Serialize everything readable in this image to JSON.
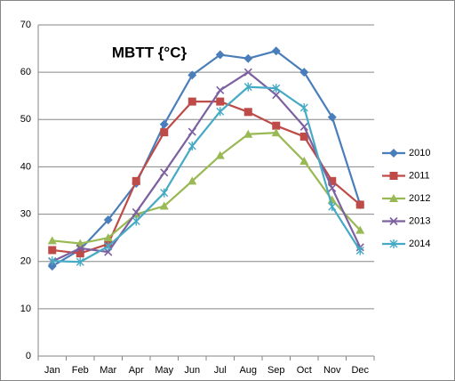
{
  "chart_data": {
    "type": "line",
    "title": "MBTT {°C}",
    "categories": [
      "Jan",
      "Feb",
      "Mar",
      "Apr",
      "May",
      "Jun",
      "Jul",
      "Aug",
      "Sep",
      "Oct",
      "Nov",
      "Dec"
    ],
    "series": [
      {
        "name": "2010",
        "color": "#4a7ebb",
        "marker": "diamond",
        "values": [
          19,
          22.5,
          28.8,
          36.5,
          49,
          59.4,
          63.7,
          62.9,
          64.5,
          60,
          50.5,
          32
        ]
      },
      {
        "name": "2011",
        "color": "#be4b48",
        "marker": "square",
        "values": [
          22.4,
          21.7,
          23.7,
          37,
          47.3,
          53.8,
          53.8,
          51.6,
          48.7,
          46.4,
          37,
          32
        ]
      },
      {
        "name": "2012",
        "color": "#98b954",
        "marker": "triangle",
        "values": [
          24.4,
          23.8,
          25,
          30,
          31.7,
          37,
          42.4,
          46.9,
          47.2,
          41.2,
          33,
          26.6
        ]
      },
      {
        "name": "2013",
        "color": "#7d60a0",
        "marker": "x",
        "values": [
          20,
          22.8,
          22,
          30.4,
          38.8,
          47.4,
          56.2,
          60,
          55.2,
          48.5,
          35.5,
          23
        ]
      },
      {
        "name": "2014",
        "color": "#46aac5",
        "marker": "star",
        "values": [
          20.1,
          19.9,
          23.2,
          28.5,
          34.5,
          44.4,
          51.7,
          56.9,
          56.6,
          52.5,
          31.6,
          22.3
        ]
      }
    ],
    "ylim": [
      0,
      70
    ],
    "yticks": [
      0,
      10,
      20,
      30,
      40,
      50,
      60,
      70
    ],
    "grid": true,
    "legend": "right"
  }
}
